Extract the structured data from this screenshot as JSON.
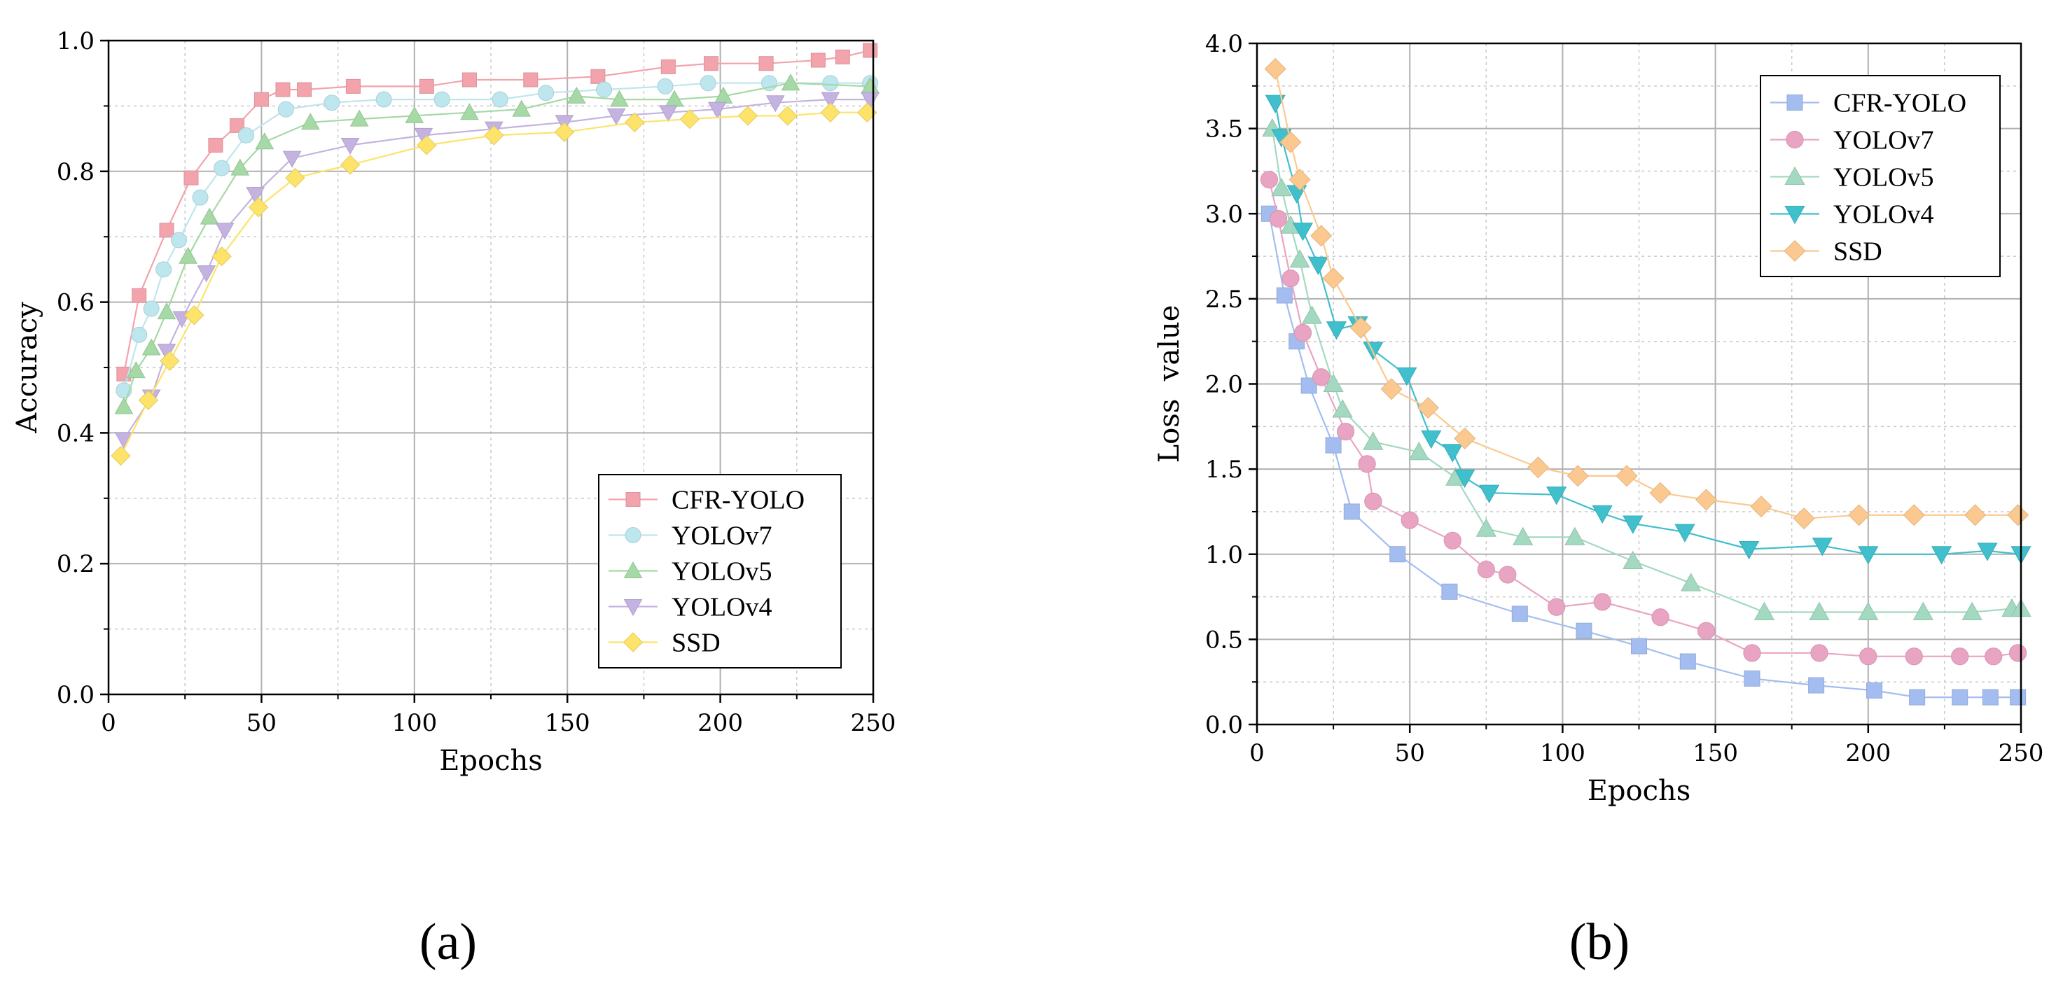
{
  "chart_data": [
    {
      "type": "line",
      "panel_label": "(a)",
      "xlabel": "Epochs",
      "ylabel": "Accuracy",
      "xlim": [
        0,
        250
      ],
      "ylim": [
        0.0,
        1.0
      ],
      "xticks": [
        0,
        50,
        100,
        150,
        200,
        250
      ],
      "yticks": [
        0.0,
        0.2,
        0.4,
        0.6,
        0.8,
        1.0
      ],
      "xtick_labels": [
        "0",
        "50",
        "100",
        "150",
        "200",
        "250"
      ],
      "ytick_labels": [
        "0.0",
        "0.2",
        "0.4",
        "0.6",
        "0.8",
        "1.0"
      ],
      "grid": true,
      "legend_position": "bottom-right",
      "series": [
        {
          "name": "CFR-YOLO",
          "marker": "square",
          "color": "#f2a3ac",
          "x": [
            5,
            10,
            19,
            27,
            35,
            42,
            50,
            57,
            64,
            80,
            104,
            118,
            138,
            160,
            183,
            197,
            215,
            232,
            240,
            249
          ],
          "y": [
            0.49,
            0.61,
            0.71,
            0.79,
            0.84,
            0.87,
            0.91,
            0.925,
            0.925,
            0.93,
            0.93,
            0.94,
            0.94,
            0.945,
            0.96,
            0.965,
            0.965,
            0.97,
            0.975,
            0.985
          ]
        },
        {
          "name": "YOLOv7",
          "marker": "circle",
          "color": "#bde6ee",
          "x": [
            5,
            10,
            14,
            18,
            23,
            30,
            37,
            45,
            58,
            73,
            90,
            109,
            128,
            143,
            162,
            182,
            196,
            216,
            236,
            249
          ],
          "y": [
            0.465,
            0.55,
            0.59,
            0.65,
            0.695,
            0.76,
            0.805,
            0.855,
            0.895,
            0.905,
            0.91,
            0.91,
            0.91,
            0.92,
            0.925,
            0.93,
            0.935,
            0.935,
            0.935,
            0.935
          ]
        },
        {
          "name": "YOLOv5",
          "marker": "triangle-up",
          "color": "#a5d9a5",
          "x": [
            5,
            9,
            14,
            19,
            26,
            33,
            43,
            51,
            66,
            82,
            100,
            118,
            135,
            153,
            167,
            185,
            201,
            223,
            249
          ],
          "y": [
            0.44,
            0.495,
            0.53,
            0.585,
            0.67,
            0.73,
            0.805,
            0.845,
            0.875,
            0.88,
            0.885,
            0.89,
            0.895,
            0.915,
            0.91,
            0.91,
            0.915,
            0.935,
            0.93
          ]
        },
        {
          "name": "YOLOv4",
          "marker": "triangle-down",
          "color": "#c4b3e0",
          "x": [
            5,
            14,
            19,
            24,
            32,
            38,
            48,
            60,
            79,
            103,
            126,
            149,
            166,
            183,
            199,
            218,
            236,
            249
          ],
          "y": [
            0.39,
            0.455,
            0.525,
            0.575,
            0.645,
            0.71,
            0.765,
            0.82,
            0.84,
            0.855,
            0.865,
            0.875,
            0.885,
            0.89,
            0.895,
            0.905,
            0.91,
            0.91
          ]
        },
        {
          "name": "SSD",
          "marker": "diamond",
          "color": "#fde369",
          "x": [
            4,
            13,
            20,
            28,
            37,
            49,
            61,
            79,
            104,
            126,
            149,
            172,
            190,
            209,
            222,
            236,
            248
          ],
          "y": [
            0.365,
            0.45,
            0.51,
            0.58,
            0.67,
            0.745,
            0.79,
            0.81,
            0.84,
            0.855,
            0.86,
            0.875,
            0.88,
            0.885,
            0.885,
            0.89,
            0.89
          ]
        }
      ]
    },
    {
      "type": "line",
      "panel_label": "(b)",
      "xlabel": "Epochs",
      "ylabel": "Loss  value",
      "xlim": [
        0,
        250
      ],
      "ylim": [
        0.0,
        4.0
      ],
      "xticks": [
        0,
        50,
        100,
        150,
        200,
        250
      ],
      "yticks": [
        0.0,
        0.5,
        1.0,
        1.5,
        2.0,
        2.5,
        3.0,
        3.5,
        4.0
      ],
      "xtick_labels": [
        "0",
        "50",
        "100",
        "150",
        "200",
        "250"
      ],
      "ytick_labels": [
        "0.0",
        "0.5",
        "1.0",
        "1.5",
        "2.0",
        "2.5",
        "3.0",
        "3.5",
        "4.0"
      ],
      "grid": true,
      "legend_position": "top-right",
      "series": [
        {
          "name": "CFR-YOLO",
          "marker": "square",
          "color": "#a4bdf0",
          "x": [
            4,
            9,
            13,
            17,
            25,
            31,
            46,
            63,
            86,
            107,
            125,
            141,
            162,
            183,
            202,
            216,
            230,
            240,
            249
          ],
          "y": [
            3.0,
            2.52,
            2.25,
            1.99,
            1.64,
            1.25,
            1.0,
            0.78,
            0.65,
            0.55,
            0.46,
            0.37,
            0.27,
            0.23,
            0.2,
            0.16,
            0.16,
            0.16,
            0.16
          ]
        },
        {
          "name": "YOLOv7",
          "marker": "circle",
          "color": "#eaa4c3",
          "x": [
            4,
            7,
            11,
            15,
            21,
            29,
            36,
            38,
            50,
            64,
            75,
            82,
            98,
            113,
            132,
            147,
            162,
            184,
            200,
            215,
            230,
            241,
            249
          ],
          "y": [
            3.2,
            2.97,
            2.62,
            2.3,
            2.04,
            1.72,
            1.53,
            1.31,
            1.2,
            1.08,
            0.91,
            0.88,
            0.69,
            0.72,
            0.63,
            0.55,
            0.42,
            0.42,
            0.4,
            0.4,
            0.4,
            0.4,
            0.42
          ]
        },
        {
          "name": "YOLOv5",
          "marker": "triangle-up",
          "color": "#a3d9c0",
          "x": [
            5,
            8,
            11,
            14,
            18,
            25,
            28,
            38,
            53,
            65,
            75,
            87,
            104,
            123,
            142,
            166,
            184,
            200,
            218,
            234,
            247,
            250
          ],
          "y": [
            3.5,
            3.15,
            2.93,
            2.73,
            2.4,
            2.0,
            1.85,
            1.66,
            1.6,
            1.45,
            1.15,
            1.1,
            1.1,
            0.96,
            0.83,
            0.66,
            0.66,
            0.66,
            0.66,
            0.66,
            0.68,
            0.68
          ]
        },
        {
          "name": "YOLOv4",
          "marker": "triangle-down",
          "color": "#40bfcc",
          "x": [
            6,
            8,
            13,
            15,
            20,
            26,
            33,
            38,
            49,
            57,
            64,
            68,
            76,
            98,
            113,
            123,
            140,
            161,
            185,
            200,
            224,
            239,
            250
          ],
          "y": [
            3.65,
            3.45,
            3.12,
            2.9,
            2.7,
            2.32,
            2.35,
            2.2,
            2.05,
            1.68,
            1.6,
            1.45,
            1.36,
            1.35,
            1.24,
            1.18,
            1.13,
            1.03,
            1.05,
            1.0,
            1.0,
            1.02,
            1.0
          ]
        },
        {
          "name": "SSD",
          "marker": "diamond",
          "color": "#fbc98f",
          "x": [
            6,
            11,
            14,
            21,
            25,
            34,
            44,
            56,
            68,
            92,
            105,
            121,
            132,
            147,
            165,
            179,
            197,
            215,
            235,
            249
          ],
          "y": [
            3.85,
            3.42,
            3.2,
            2.87,
            2.62,
            2.33,
            1.97,
            1.86,
            1.68,
            1.51,
            1.46,
            1.46,
            1.36,
            1.32,
            1.28,
            1.21,
            1.23,
            1.23,
            1.23,
            1.23
          ]
        }
      ]
    }
  ]
}
